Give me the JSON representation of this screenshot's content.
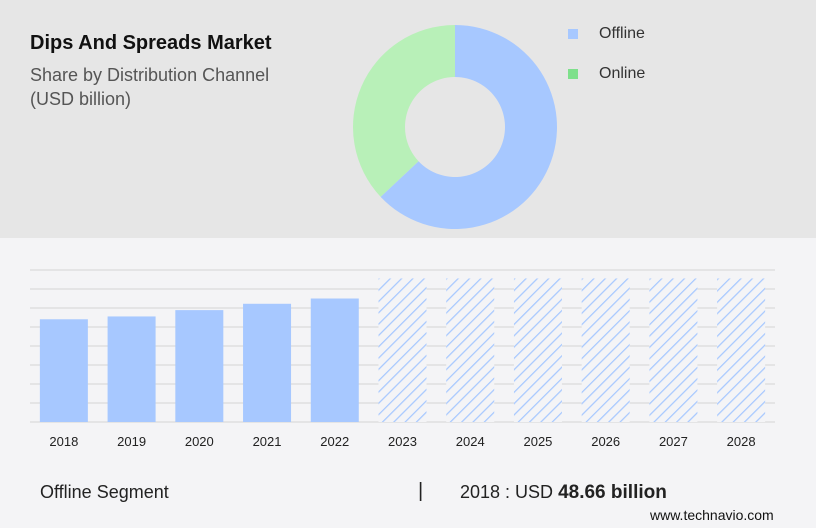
{
  "header": {
    "title": "Dips And Spreads Market",
    "subtitle_line1": "Share by Distribution Channel",
    "subtitle_line2": "(USD billion)"
  },
  "legend": [
    {
      "label": "Offline",
      "color": "#a7c8ff"
    },
    {
      "label": "Online",
      "color": "#7ee08b"
    }
  ],
  "chart_data": [
    {
      "type": "pie",
      "donut": true,
      "slices": [
        {
          "name": "Offline",
          "value": 63,
          "color": "#a7c8ff"
        },
        {
          "name": "Online",
          "value": 37,
          "color": "#b8f0b8"
        }
      ]
    },
    {
      "type": "bar",
      "categories": [
        "2018",
        "2019",
        "2020",
        "2021",
        "2022",
        "2023",
        "2024",
        "2025",
        "2026",
        "2027",
        "2028"
      ],
      "values": [
        48.66,
        50.0,
        53.0,
        56.0,
        58.5,
        68,
        68,
        68,
        68,
        68,
        68
      ],
      "forecast_from_index": 5,
      "ylim": [
        0,
        72
      ],
      "grid": true,
      "bar_color": "#a7c8ff",
      "forecast_pattern": "diagonal-hatch"
    }
  ],
  "footer": {
    "segment": "Offline Segment",
    "separator": "|",
    "value_prefix": "2018 : USD",
    "value": "48.66 billion",
    "brand": "www.technavio.com"
  }
}
